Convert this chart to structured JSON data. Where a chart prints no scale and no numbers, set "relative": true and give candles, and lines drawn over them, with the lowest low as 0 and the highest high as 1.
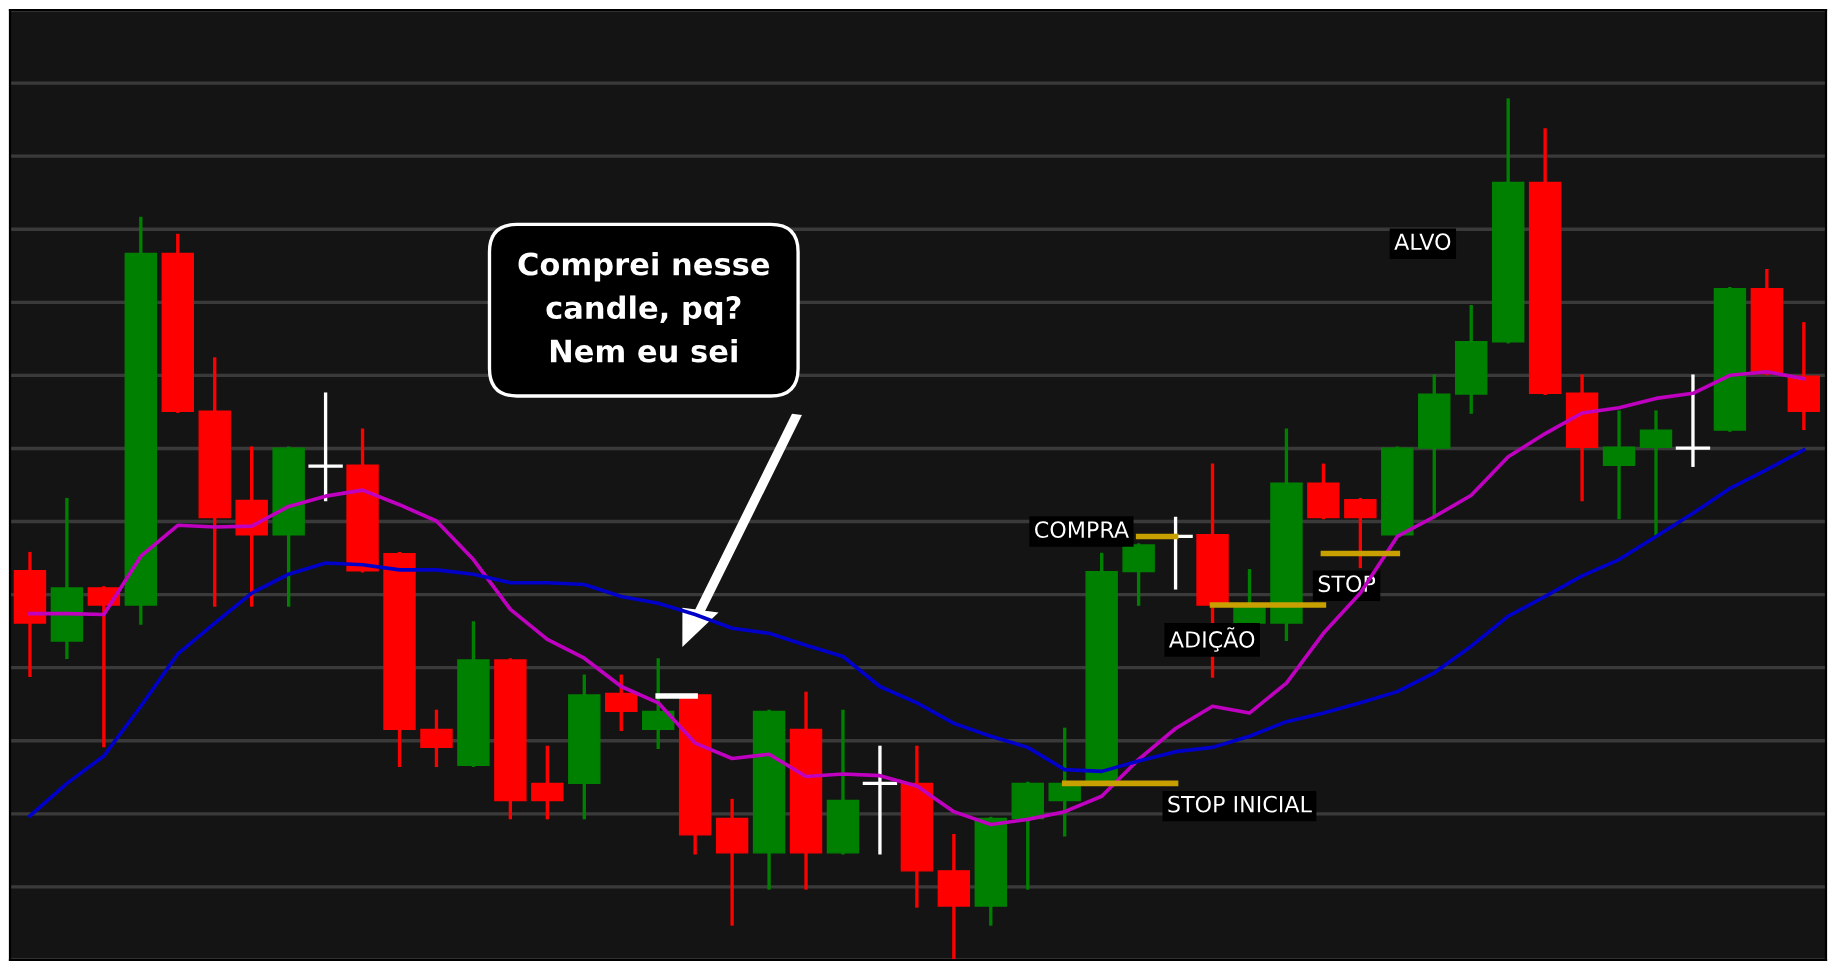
{
  "chart_data": {
    "type": "candlestick",
    "relative": true,
    "grid": "y",
    "categories": [
      null,
      null,
      null,
      null,
      null,
      null,
      null,
      null,
      null,
      null,
      null,
      null,
      null,
      null,
      null,
      null,
      null,
      null,
      null,
      null,
      null,
      null,
      null,
      null,
      null,
      null,
      null,
      null,
      null,
      null,
      null,
      null,
      null,
      null,
      null,
      null,
      null,
      null,
      null,
      null,
      null,
      null,
      null,
      null,
      null,
      null,
      null,
      null,
      null
    ],
    "ohlc": [
      [
        0.451,
        0.471,
        0.329,
        0.39
      ],
      [
        0.369,
        0.534,
        0.35,
        0.431
      ],
      [
        0.431,
        0.431,
        0.247,
        0.411
      ],
      [
        0.411,
        0.862,
        0.39,
        0.821
      ],
      [
        0.821,
        0.842,
        0.637,
        0.637
      ],
      [
        0.637,
        0.698,
        0.411,
        0.513
      ],
      [
        0.533,
        0.594,
        0.411,
        0.493
      ],
      [
        0.493,
        0.594,
        0.411,
        0.594
      ],
      [
        0.573,
        0.657,
        0.534,
        0.573
      ],
      [
        0.574,
        0.615,
        0.451,
        0.451
      ],
      [
        0.471,
        0.471,
        0.224,
        0.266
      ],
      [
        0.266,
        0.287,
        0.224,
        0.245
      ],
      [
        0.224,
        0.39,
        0.224,
        0.347
      ],
      [
        0.347,
        0.347,
        0.163,
        0.183
      ],
      [
        0.203,
        0.245,
        0.163,
        0.183
      ],
      [
        0.203,
        0.328,
        0.163,
        0.306
      ],
      [
        0.308,
        0.328,
        0.266,
        0.287
      ],
      [
        0.266,
        0.347,
        0.245,
        0.287
      ],
      [
        0.306,
        0.306,
        0.122,
        0.143
      ],
      [
        0.162,
        0.183,
        0.039,
        0.122
      ],
      [
        0.122,
        0.287,
        0.081,
        0.287
      ],
      [
        0.266,
        0.308,
        0.081,
        0.122
      ],
      [
        0.122,
        0.287,
        0.122,
        0.183
      ],
      [
        0.203,
        0.245,
        0.122,
        0.203
      ],
      [
        0.203,
        0.245,
        0.06,
        0.101
      ],
      [
        0.101,
        0.142,
        0.0,
        0.06
      ],
      [
        0.06,
        0.162,
        0.039,
        0.162
      ],
      [
        0.162,
        0.203,
        0.081,
        0.203
      ],
      [
        0.183,
        0.266,
        0.143,
        0.203
      ],
      [
        0.203,
        0.47,
        0.203,
        0.45
      ],
      [
        0.45,
        0.481,
        0.412,
        0.481
      ],
      [
        0.491,
        0.512,
        0.431,
        0.491
      ],
      [
        0.493,
        0.574,
        0.328,
        0.411
      ],
      [
        0.39,
        0.451,
        0.39,
        0.41
      ],
      [
        0.39,
        0.615,
        0.371,
        0.553
      ],
      [
        0.553,
        0.574,
        0.513,
        0.513
      ],
      [
        0.534,
        0.534,
        0.456,
        0.513
      ],
      [
        0.493,
        0.594,
        0.493,
        0.594
      ],
      [
        0.594,
        0.678,
        0.514,
        0.657
      ],
      [
        0.657,
        0.759,
        0.636,
        0.718
      ],
      [
        0.718,
        1.0,
        0.718,
        0.904
      ],
      [
        0.904,
        0.965,
        0.658,
        0.658
      ],
      [
        0.658,
        0.678,
        0.534,
        0.595
      ],
      [
        0.574,
        0.636,
        0.513,
        0.595
      ],
      [
        0.595,
        0.636,
        0.493,
        0.615
      ],
      [
        0.594,
        0.678,
        0.574,
        0.594
      ],
      [
        0.615,
        0.78,
        0.615,
        0.78
      ],
      [
        0.78,
        0.801,
        0.681,
        0.681
      ],
      [
        0.678,
        0.739,
        0.617,
        0.637
      ]
    ],
    "colors": [
      "#ff0000",
      "#008000",
      "#ff0000",
      "#008000",
      "#ff0000",
      "#ff0000",
      "#ff0000",
      "#008000",
      "#ffffff",
      "#ff0000",
      "#ff0000",
      "#ff0000",
      "#008000",
      "#ff0000",
      "#ff0000",
      "#008000",
      "#ff0000",
      "#008000",
      "#ff0000",
      "#ff0000",
      "#008000",
      "#ff0000",
      "#008000",
      "#ffffff",
      "#ff0000",
      "#ff0000",
      "#008000",
      "#008000",
      "#008000",
      "#008000",
      "#008000",
      "#ffffff",
      "#ff0000",
      "#008000",
      "#008000",
      "#ff0000",
      "#ff0000",
      "#008000",
      "#008000",
      "#008000",
      "#008000",
      "#ff0000",
      "#ff0000",
      "#008000",
      "#008000",
      "#ffffff",
      "#008000",
      "#ff0000",
      "#ff0000"
    ],
    "series": [
      {
        "type": "line",
        "color": "#c000c0",
        "values": [
          0.401,
          0.401,
          0.4,
          0.468,
          0.504,
          0.502,
          0.503,
          0.526,
          0.538,
          0.545,
          0.528,
          0.509,
          0.464,
          0.406,
          0.371,
          0.349,
          0.316,
          0.297,
          0.25,
          0.232,
          0.237,
          0.211,
          0.214,
          0.212,
          0.2,
          0.17,
          0.155,
          0.161,
          0.17,
          0.188,
          0.231,
          0.267,
          0.293,
          0.285,
          0.32,
          0.378,
          0.425,
          0.491,
          0.514,
          0.539,
          0.584,
          0.611,
          0.635,
          0.641,
          0.652,
          0.658,
          0.679,
          0.683,
          0.675
        ]
      },
      {
        "type": "line",
        "color": "#0000c8",
        "values": [
          0.165,
          0.203,
          0.235,
          0.293,
          0.354,
          0.39,
          0.425,
          0.447,
          0.46,
          0.458,
          0.452,
          0.452,
          0.447,
          0.437,
          0.437,
          0.435,
          0.421,
          0.413,
          0.4,
          0.384,
          0.378,
          0.364,
          0.351,
          0.316,
          0.297,
          0.273,
          0.258,
          0.245,
          0.219,
          0.217,
          0.229,
          0.24,
          0.245,
          0.258,
          0.275,
          0.285,
          0.297,
          0.31,
          0.332,
          0.363,
          0.398,
          0.421,
          0.445,
          0.464,
          0.491,
          0.518,
          0.547,
          0.569,
          0.592
        ]
      },
      {
        "type": "line",
        "color": "#ffffff",
        "values": [
          null,
          null,
          null,
          null,
          null,
          null,
          null,
          null,
          null,
          null,
          null,
          null,
          null,
          null,
          null,
          null,
          null,
          0.305,
          0.305,
          null,
          null,
          null,
          null,
          null,
          null,
          null,
          null,
          null,
          null,
          null,
          null,
          null,
          null,
          null,
          null,
          null,
          null,
          null,
          null,
          null,
          null,
          null,
          null,
          null,
          null,
          null,
          null,
          null,
          null
        ]
      },
      {
        "type": "line",
        "color": "#c8a000",
        "values": [
          null,
          null,
          null,
          null,
          null,
          null,
          null,
          null,
          null,
          null,
          null,
          null,
          null,
          null,
          null,
          null,
          null,
          null,
          null,
          null,
          null,
          null,
          null,
          null,
          null,
          null,
          null,
          null,
          0.203,
          0.203,
          0.203,
          0.203,
          null,
          null,
          null,
          null,
          null,
          null,
          null,
          null,
          null,
          null,
          null,
          null,
          null,
          null,
          null,
          null,
          null
        ]
      },
      {
        "type": "line",
        "color": "#c8a000",
        "values": [
          null,
          null,
          null,
          null,
          null,
          null,
          null,
          null,
          null,
          null,
          null,
          null,
          null,
          null,
          null,
          null,
          null,
          null,
          null,
          null,
          null,
          null,
          null,
          null,
          null,
          null,
          null,
          null,
          null,
          null,
          0.491,
          0.491,
          null,
          null,
          null,
          null,
          null,
          null,
          null,
          null,
          null,
          null,
          null,
          null,
          null,
          null,
          null,
          null,
          null
        ]
      },
      {
        "type": "line",
        "color": "#c8a000",
        "values": [
          null,
          null,
          null,
          null,
          null,
          null,
          null,
          null,
          null,
          null,
          null,
          null,
          null,
          null,
          null,
          null,
          null,
          null,
          null,
          null,
          null,
          null,
          null,
          null,
          null,
          null,
          null,
          null,
          null,
          null,
          null,
          null,
          0.411,
          0.411,
          0.411,
          0.411,
          null,
          null,
          null,
          null,
          null,
          null,
          null,
          null,
          null,
          null,
          null,
          null,
          null
        ]
      },
      {
        "type": "line",
        "color": "#c8a000",
        "values": [
          null,
          null,
          null,
          null,
          null,
          null,
          null,
          null,
          null,
          null,
          null,
          null,
          null,
          null,
          null,
          null,
          null,
          null,
          null,
          null,
          null,
          null,
          null,
          null,
          null,
          null,
          null,
          null,
          null,
          null,
          null,
          null,
          null,
          null,
          null,
          0.471,
          0.471,
          0.471,
          null,
          null,
          null,
          null,
          null,
          null,
          null,
          null,
          null,
          null,
          null
        ]
      }
    ],
    "annotations": [
      "Comprei nesse\ncandle, pq?\nNem eu sei",
      "COMPRA",
      "ADIÇÃO",
      "STOP",
      "STOP INICIAL",
      "ALVO"
    ]
  }
}
